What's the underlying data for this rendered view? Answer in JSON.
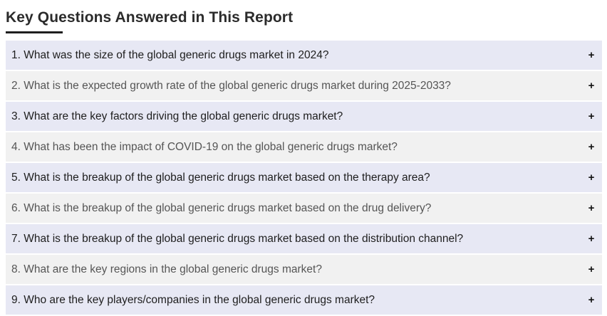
{
  "heading": "Key Questions Answered in This Report",
  "icon": "plus-icon",
  "questions": [
    {
      "text": "1. What was the size of the global generic drugs market in 2024?",
      "toggle": "+"
    },
    {
      "text": "2. What is the expected growth rate of the global generic drugs market during 2025-2033?",
      "toggle": "+"
    },
    {
      "text": "3. What are the key factors driving the global generic drugs market?",
      "toggle": "+"
    },
    {
      "text": "4. What has been the impact of COVID-19 on the global generic drugs market?",
      "toggle": "+"
    },
    {
      "text": "5. What is the breakup of the global generic drugs market based on the therapy area?",
      "toggle": "+"
    },
    {
      "text": "6. What is the breakup of the global generic drugs market based on the drug delivery?",
      "toggle": "+"
    },
    {
      "text": "7. What is the breakup of the global generic drugs market based on the distribution channel?",
      "toggle": "+"
    },
    {
      "text": "8. What are the key regions in the global generic drugs market?",
      "toggle": "+"
    },
    {
      "text": "9. Who are the key players/companies in the global generic drugs market?",
      "toggle": "+"
    }
  ]
}
